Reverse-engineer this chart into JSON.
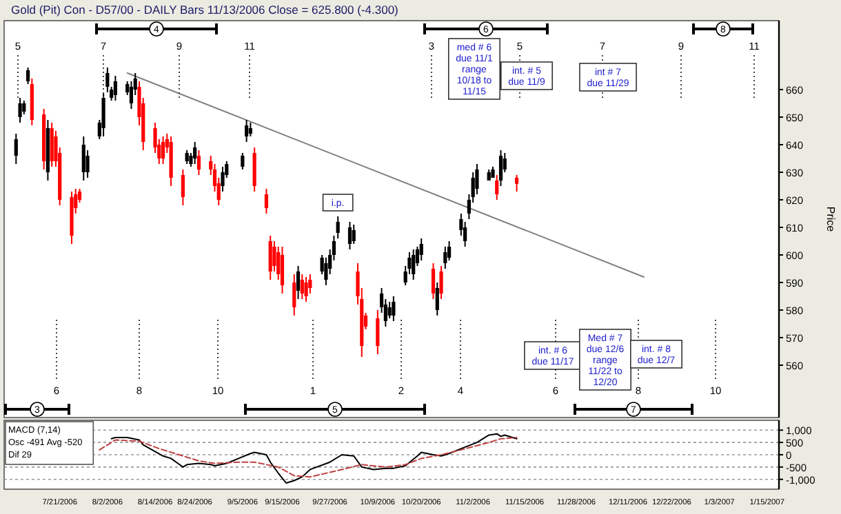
{
  "chart_data": [
    {
      "type": "candlestick",
      "title": "Gold (Pit) Con - D57/00 - DAILY Bars 11/13/2006 Close = 625.800 (-4.300)",
      "ylabel": "Price",
      "x": [
        "2006-07-10",
        "2006-07-11",
        "2006-07-12",
        "2006-07-13",
        "2006-07-14",
        "2006-07-17",
        "2006-07-18",
        "2006-07-19",
        "2006-07-20",
        "2006-07-21",
        "2006-07-24",
        "2006-07-25",
        "2006-07-26",
        "2006-07-27",
        "2006-07-28",
        "2006-07-31",
        "2006-08-01",
        "2006-08-02",
        "2006-08-03",
        "2006-08-04",
        "2006-08-07",
        "2006-08-08",
        "2006-08-09",
        "2006-08-10",
        "2006-08-11",
        "2006-08-14",
        "2006-08-15",
        "2006-08-16",
        "2006-08-17",
        "2006-08-18",
        "2006-08-21",
        "2006-08-22",
        "2006-08-23",
        "2006-08-24",
        "2006-08-25",
        "2006-08-28",
        "2006-08-29",
        "2006-08-30",
        "2006-08-31",
        "2006-09-01",
        "2006-09-05",
        "2006-09-06",
        "2006-09-07",
        "2006-09-08",
        "2006-09-11",
        "2006-09-12",
        "2006-09-13",
        "2006-09-14",
        "2006-09-15",
        "2006-09-18",
        "2006-09-19",
        "2006-09-20",
        "2006-09-21",
        "2006-09-22",
        "2006-09-25",
        "2006-09-26",
        "2006-09-27",
        "2006-09-28",
        "2006-09-29",
        "2006-10-02",
        "2006-10-03",
        "2006-10-04",
        "2006-10-05",
        "2006-10-06",
        "2006-10-09",
        "2006-10-10",
        "2006-10-11",
        "2006-10-12",
        "2006-10-13",
        "2006-10-16",
        "2006-10-17",
        "2006-10-18",
        "2006-10-19",
        "2006-10-20",
        "2006-10-23",
        "2006-10-24",
        "2006-10-25",
        "2006-10-26",
        "2006-10-27",
        "2006-10-30",
        "2006-10-31",
        "2006-11-01",
        "2006-11-02",
        "2006-11-03",
        "2006-11-06",
        "2006-11-07",
        "2006-11-08",
        "2006-11-09",
        "2006-11-10",
        "2006-11-13"
      ],
      "ohlc": [
        [
          636,
          644,
          633,
          642
        ],
        [
          650,
          657,
          648,
          655
        ],
        [
          652,
          656,
          651,
          655
        ],
        [
          663,
          668,
          662,
          667
        ],
        [
          662,
          664,
          647,
          649
        ],
        [
          651,
          653,
          631,
          634
        ],
        [
          630,
          649,
          627,
          646
        ],
        [
          646,
          648,
          632,
          634
        ],
        [
          643,
          645,
          632,
          634
        ],
        [
          637,
          639,
          618,
          620
        ],
        [
          621,
          623,
          604,
          607
        ],
        [
          622,
          624,
          615,
          617
        ],
        [
          623,
          624,
          619,
          620
        ],
        [
          630,
          643,
          627,
          640
        ],
        [
          630,
          638,
          628,
          636
        ],
        [
          643,
          649,
          642,
          648
        ],
        [
          646,
          659,
          643,
          657
        ],
        [
          661,
          668,
          659,
          666
        ],
        [
          657,
          661,
          656,
          660
        ],
        [
          658,
          665,
          656,
          663
        ],
        [
          659,
          663,
          658,
          662
        ],
        [
          655,
          663,
          653,
          661
        ],
        [
          660,
          666,
          658,
          664
        ],
        [
          661,
          663,
          647,
          650
        ],
        [
          655,
          657,
          638,
          641
        ],
        [
          646,
          648,
          637,
          639
        ],
        [
          640,
          642,
          633,
          635
        ],
        [
          641,
          643,
          633,
          635
        ],
        [
          642,
          644,
          637,
          639
        ],
        [
          641,
          643,
          625,
          628
        ],
        [
          629,
          631,
          618,
          621
        ],
        [
          634,
          638,
          633,
          637
        ],
        [
          633,
          637,
          632,
          636
        ],
        [
          635,
          641,
          633,
          639
        ],
        [
          636,
          638,
          629,
          631
        ],
        [
          634,
          636,
          629,
          631
        ],
        [
          631,
          633,
          623,
          625
        ],
        [
          626,
          628,
          618,
          620
        ],
        [
          625,
          632,
          623,
          630
        ],
        [
          629,
          634,
          628,
          633
        ],
        [
          632,
          637,
          631,
          636
        ],
        [
          643,
          649,
          641,
          647
        ],
        [
          644,
          648,
          643,
          646
        ],
        [
          637,
          639,
          623,
          625
        ],
        [
          622,
          624,
          615,
          617
        ],
        [
          605,
          607,
          591,
          594
        ],
        [
          603,
          605,
          594,
          596
        ],
        [
          601,
          603,
          591,
          593
        ],
        [
          600,
          603,
          586,
          589
        ],
        [
          590,
          593,
          578,
          581
        ],
        [
          587,
          596,
          584,
          594
        ],
        [
          591,
          593,
          584,
          586
        ],
        [
          590,
          592,
          583,
          585
        ],
        [
          591,
          593,
          586,
          588
        ],
        [
          594,
          600,
          593,
          599
        ],
        [
          591,
          599,
          589,
          597
        ],
        [
          595,
          602,
          593,
          600
        ],
        [
          600,
          607,
          598,
          605
        ],
        [
          608,
          614,
          606,
          612
        ],
        [
          604,
          612,
          602,
          610
        ],
        [
          605,
          611,
          604,
          609
        ],
        [
          594,
          597,
          582,
          585
        ],
        [
          584,
          588,
          563,
          567
        ],
        [
          578,
          579,
          573,
          574
        ],
        [
          577,
          580,
          564,
          567
        ],
        [
          581,
          588,
          579,
          586
        ],
        [
          576,
          584,
          574,
          582
        ],
        [
          578,
          583,
          577,
          581
        ],
        [
          578,
          585,
          576,
          583
        ],
        [
          590,
          596,
          589,
          594
        ],
        [
          595,
          601,
          593,
          599
        ],
        [
          593,
          602,
          591,
          600
        ],
        [
          597,
          603,
          596,
          602
        ],
        [
          600,
          606,
          598,
          604
        ],
        [
          595,
          597,
          584,
          586
        ],
        [
          580,
          590,
          578,
          588
        ],
        [
          594,
          596,
          584,
          586
        ],
        [
          597,
          603,
          595,
          601
        ],
        [
          599,
          605,
          598,
          603
        ],
        [
          609,
          615,
          607,
          613
        ],
        [
          605,
          612,
          603,
          610
        ],
        [
          615,
          622,
          613,
          620
        ],
        [
          621,
          630,
          619,
          628
        ],
        [
          624,
          633,
          622,
          631
        ],
        [
          627,
          631,
          627,
          630
        ],
        [
          628,
          632,
          628,
          631
        ],
        [
          627,
          629,
          620,
          622
        ],
        [
          627,
          638,
          625,
          636
        ],
        [
          631,
          637,
          630,
          635
        ],
        [
          628,
          629,
          623,
          625.8
        ]
      ],
      "colors": [
        "#000000",
        "#000000",
        "#000000",
        "#000000",
        "#ff0000",
        "#ff0000",
        "#000000",
        "#ff0000",
        "#ff0000",
        "#ff0000",
        "#ff0000",
        "#ff0000",
        "#ff0000",
        "#000000",
        "#000000",
        "#000000",
        "#000000",
        "#000000",
        "#000000",
        "#000000",
        "#000000",
        "#000000",
        "#000000",
        "#ff0000",
        "#ff0000",
        "#ff0000",
        "#ff0000",
        "#ff0000",
        "#ff0000",
        "#ff0000",
        "#ff0000",
        "#000000",
        "#000000",
        "#000000",
        "#ff0000",
        "#ff0000",
        "#ff0000",
        "#ff0000",
        "#000000",
        "#000000",
        "#000000",
        "#000000",
        "#000000",
        "#ff0000",
        "#ff0000",
        "#ff0000",
        "#ff0000",
        "#ff0000",
        "#ff0000",
        "#ff0000",
        "#000000",
        "#ff0000",
        "#ff0000",
        "#ff0000",
        "#000000",
        "#000000",
        "#000000",
        "#000000",
        "#000000",
        "#000000",
        "#000000",
        "#ff0000",
        "#ff0000",
        "#ff0000",
        "#ff0000",
        "#000000",
        "#000000",
        "#000000",
        "#000000",
        "#000000",
        "#000000",
        "#000000",
        "#000000",
        "#000000",
        "#ff0000",
        "#000000",
        "#ff0000",
        "#000000",
        "#000000",
        "#000000",
        "#000000",
        "#000000",
        "#000000",
        "#000000",
        "#000000",
        "#000000",
        "#ff0000",
        "#000000",
        "#000000",
        "#ff0000"
      ],
      "series": [
        {
          "type": "line",
          "x": [
            "2006-08-07",
            "2006-12-15"
          ],
          "values": [
            666,
            592
          ],
          "color": "#808080"
        }
      ],
      "xlim": [
        "2006-07-07",
        "2007-01-18"
      ],
      "ylim": [
        541,
        685
      ],
      "yticks": [
        560,
        570,
        580,
        590,
        600,
        610,
        620,
        630,
        640,
        650,
        660
      ],
      "tick_labels": "y",
      "annotations": [
        "5",
        "7",
        "9",
        "11",
        "3",
        "5",
        "7",
        "9",
        "11",
        "6",
        "8",
        "10",
        "1",
        "2",
        "4",
        "6",
        "8",
        "10",
        "4",
        "6",
        "8",
        "3",
        "5",
        "7",
        "med # 6 due 11/1 range 10/18 to 11/15",
        "int. # 5 due 11/9",
        "int # 7 due 11/29",
        "int. # 6 due 11/17",
        "Med # 7 due 12/6 range 11/22 to 12/20",
        "int. # 8 due 12/7",
        {
          "text": "i.p.",
          "x": "2006-09-29",
          "y": 614
        }
      ]
    },
    {
      "type": "line",
      "xlim": [
        "2006-07-07",
        "2007-01-18"
      ],
      "xticks": [
        {
          "value": "2006-07-21",
          "label": "7/21/2006"
        },
        {
          "value": "2006-08-02",
          "label": "8/2/2006"
        },
        {
          "value": "2006-08-14",
          "label": "8/14/2006"
        },
        {
          "value": "2006-08-24",
          "label": "8/24/2006"
        },
        {
          "value": "2006-09-05",
          "label": "9/5/2006"
        },
        {
          "value": "2006-09-15",
          "label": "9/15/2006"
        },
        {
          "value": "2006-09-27",
          "label": "9/27/2006"
        },
        {
          "value": "2006-10-09",
          "label": "10/9/2006"
        },
        {
          "value": "2006-10-20",
          "label": "10/20/2006"
        },
        {
          "value": "2006-11-02",
          "label": "11/2/2006"
        },
        {
          "value": "2006-11-15",
          "label": "11/15/2006"
        },
        {
          "value": "2006-11-28",
          "label": "11/28/2006"
        },
        {
          "value": "2006-12-11",
          "label": "12/11/2006"
        },
        {
          "value": "2006-12-22",
          "label": "12/22/2006"
        },
        {
          "value": "2007-01-03",
          "label": "1/3/2007"
        },
        {
          "value": "2007-01-15",
          "label": "1/15/2007"
        }
      ],
      "ylim": [
        -1400,
        1400
      ],
      "yticks": [
        {
          "value": 1000,
          "label": "1,000"
        },
        500,
        0,
        -500,
        {
          "value": -1000,
          "label": "-1,000"
        }
      ],
      "grid": "y",
      "annotations": [
        "MACD (7,14)",
        "Osc -491 Avg -520",
        "Dif 29"
      ],
      "series": [
        {
          "x": [
            "2006-08-03",
            "2006-08-04",
            "2006-08-07",
            "2006-08-10",
            "2006-08-11",
            "2006-08-16",
            "2006-08-18",
            "2006-08-21",
            "2006-08-22",
            "2006-08-25",
            "2006-08-28",
            "2006-08-29",
            "2006-09-01",
            "2006-09-04",
            "2006-09-07",
            "2006-09-08",
            "2006-09-11",
            "2006-09-12",
            "2006-09-14",
            "2006-09-16",
            "2006-09-18",
            "2006-09-20",
            "2006-09-22",
            "2006-09-27",
            "2006-09-30",
            "2006-10-03",
            "2006-10-05",
            "2006-10-08",
            "2006-10-11",
            "2006-10-13",
            "2006-10-16",
            "2006-10-19",
            "2006-10-20",
            "2006-10-23",
            "2006-10-25",
            "2006-10-27",
            "2006-10-30",
            "2006-11-03",
            "2006-11-06",
            "2006-11-08",
            "2006-11-09",
            "2006-11-10",
            "2006-11-13"
          ],
          "values": [
            650,
            700,
            700,
            600,
            400,
            -50,
            -150,
            -500,
            -400,
            -350,
            -400,
            -450,
            -350,
            -150,
            50,
            100,
            0,
            -300,
            -750,
            -1150,
            -1050,
            -900,
            -600,
            -300,
            0,
            -50,
            -500,
            -600,
            -550,
            -550,
            -450,
            -50,
            100,
            0,
            -50,
            50,
            250,
            500,
            800,
            850,
            750,
            800,
            650
          ],
          "color": "#000000"
        },
        {
          "x": [
            "2006-07-31",
            "2006-08-04",
            "2006-08-10",
            "2006-08-15",
            "2006-08-21",
            "2006-08-25",
            "2006-08-29",
            "2006-09-04",
            "2006-09-08",
            "2006-09-14",
            "2006-09-18",
            "2006-09-22",
            "2006-09-30",
            "2006-10-05",
            "2006-10-11",
            "2006-10-16",
            "2006-10-20",
            "2006-10-25",
            "2006-10-30",
            "2006-11-06",
            "2006-11-09",
            "2006-11-13"
          ],
          "values": [
            200,
            600,
            550,
            250,
            -50,
            -250,
            -350,
            -300,
            -300,
            -500,
            -850,
            -900,
            -600,
            -400,
            -500,
            -400,
            -150,
            0,
            200,
            500,
            650,
            700
          ],
          "color": "#c04040",
          "line_style": "dashed"
        }
      ]
    }
  ]
}
